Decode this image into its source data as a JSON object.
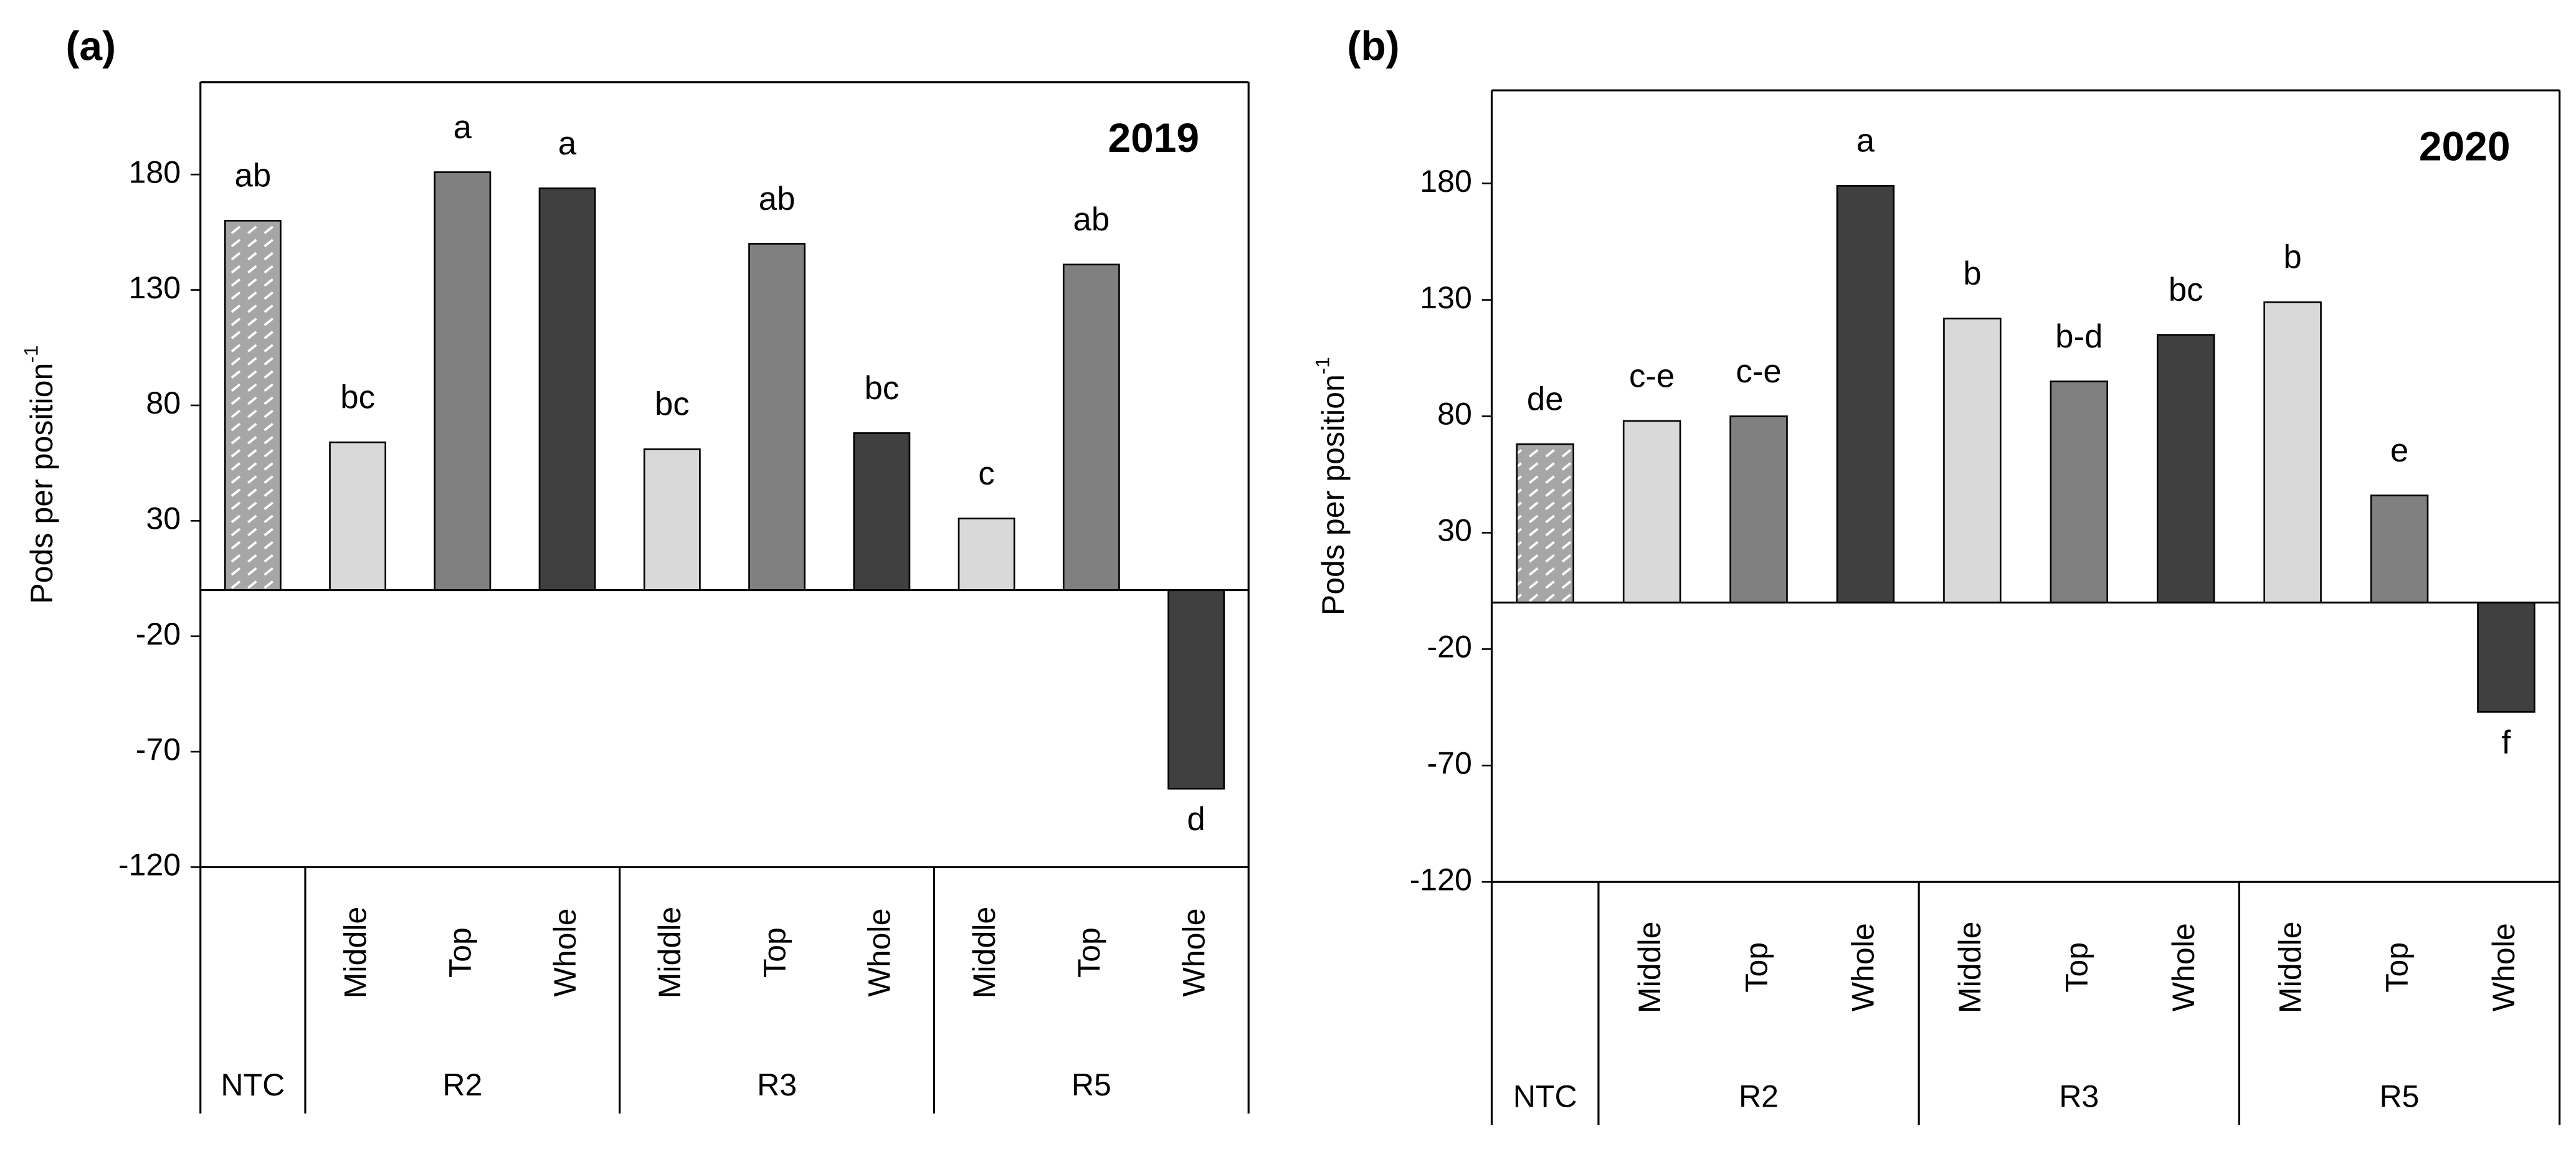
{
  "chart_data": [
    {
      "type": "bar",
      "panel": "(a)",
      "year": "2019",
      "ylabel": "Pods per position",
      "ylabel_superscript": "-1",
      "groups": [
        {
          "label": "NTC",
          "categories": [
            null
          ]
        },
        {
          "label": "R2",
          "categories": [
            "Middle",
            "Top",
            "Whole"
          ]
        },
        {
          "label": "R3",
          "categories": [
            "Middle",
            "Top",
            "Whole"
          ]
        },
        {
          "label": "R5",
          "categories": [
            "Middle",
            "Top",
            "Whole"
          ]
        }
      ],
      "values": [
        160,
        64,
        181,
        174,
        61,
        150,
        68,
        31,
        141,
        -86
      ],
      "letters": [
        "ab",
        "bc",
        "a",
        "a",
        "bc",
        "ab",
        "bc",
        "c",
        "ab",
        "d"
      ],
      "colors": [
        "#a6a6a6",
        "#d9d9d9",
        "#808080",
        "#404040",
        "#d9d9d9",
        "#808080",
        "#404040",
        "#d9d9d9",
        "#808080",
        "#404040"
      ],
      "hatched": [
        true,
        false,
        false,
        false,
        false,
        false,
        false,
        false,
        false,
        false
      ],
      "ylim": [
        -120,
        220
      ],
      "yticks": [
        -120,
        -70,
        -20,
        30,
        80,
        130,
        180
      ]
    },
    {
      "type": "bar",
      "panel": "(b)",
      "year": "2020",
      "ylabel": "Pods per position",
      "ylabel_superscript": "-1",
      "groups": [
        {
          "label": "NTC",
          "categories": [
            null
          ]
        },
        {
          "label": "R2",
          "categories": [
            "Middle",
            "Top",
            "Whole"
          ]
        },
        {
          "label": "R3",
          "categories": [
            "Middle",
            "Top",
            "Whole"
          ]
        },
        {
          "label": "R5",
          "categories": [
            "Middle",
            "Top",
            "Whole"
          ]
        }
      ],
      "values": [
        68,
        78,
        80,
        179,
        122,
        95,
        115,
        129,
        46,
        -47
      ],
      "letters": [
        "de",
        "c-e",
        "c-e",
        "a",
        "b",
        "b-d",
        "bc",
        "b",
        "e",
        "f"
      ],
      "colors": [
        "#a6a6a6",
        "#d9d9d9",
        "#808080",
        "#404040",
        "#d9d9d9",
        "#808080",
        "#404040",
        "#d9d9d9",
        "#808080",
        "#404040"
      ],
      "hatched": [
        true,
        false,
        false,
        false,
        false,
        false,
        false,
        false,
        false,
        false
      ],
      "ylim": [
        -120,
        220
      ],
      "yticks": [
        -120,
        -70,
        -20,
        30,
        80,
        130,
        180
      ]
    }
  ]
}
